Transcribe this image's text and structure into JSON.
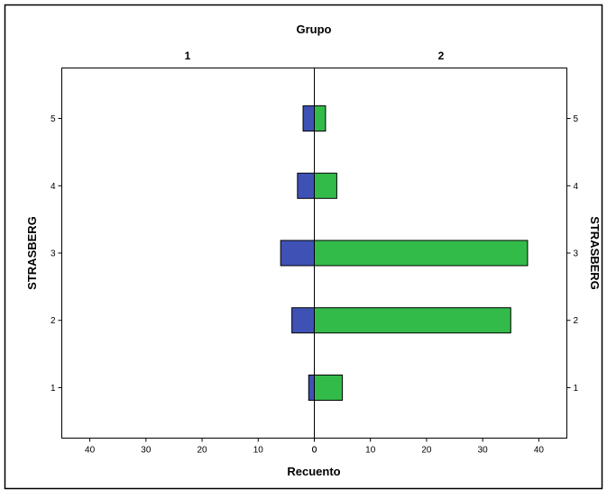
{
  "chart_data": {
    "type": "bar",
    "orientation": "horizontal",
    "layout": "population-pyramid",
    "title": "Grupo",
    "xlabel": "Recuento",
    "ylabel_left": "STRASBERG",
    "ylabel_right": "STRASBERG",
    "categories": [
      "1",
      "2",
      "3",
      "4",
      "5"
    ],
    "series": [
      {
        "name": "1",
        "values": [
          1,
          4,
          6,
          3,
          2
        ],
        "color": "#3F51B5"
      },
      {
        "name": "2",
        "values": [
          5,
          35,
          38,
          4,
          2
        ],
        "color": "#33BB4A"
      }
    ],
    "xlim": [
      0,
      45
    ],
    "x_ticks_left": [
      "40",
      "30",
      "20",
      "10",
      "0"
    ],
    "x_ticks_right": [
      "0",
      "10",
      "20",
      "30",
      "40"
    ],
    "ylim": [
      0.25,
      5.75
    ],
    "grid": false
  }
}
